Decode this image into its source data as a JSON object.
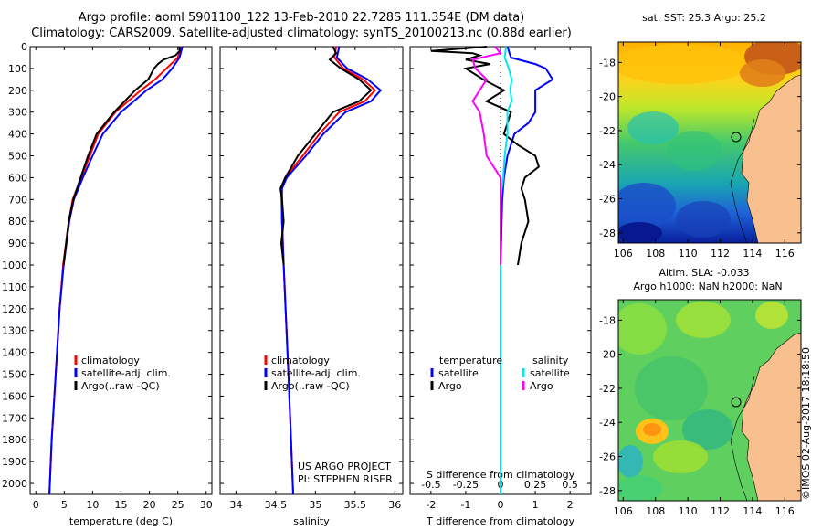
{
  "titles": {
    "line1": "Argo profile: aoml 5901100_122 13-Feb-2010 22.728S 111.354E (DM data)",
    "line2": "Climatology: CARS2009. Satellite-adjusted climatology: synTS_20100213.nc (0.88d earlier)"
  },
  "colors": {
    "climatology": "#ff0000",
    "satellite": "#0000ff",
    "argo": "#000000",
    "sat_salinity": "#00e5ee",
    "argo_salinity": "#ff00ff",
    "land": "#f7c08e"
  },
  "chart_data": [
    {
      "type": "line",
      "panel": "temperature",
      "xlabel": "temperature (deg C)",
      "xlim": [
        -1,
        31
      ],
      "xticks": [
        0,
        5,
        10,
        15,
        20,
        25,
        30
      ],
      "ylim": [
        0,
        2050
      ],
      "yticks": [
        0,
        100,
        200,
        300,
        400,
        500,
        600,
        700,
        800,
        900,
        1000,
        1100,
        1200,
        1300,
        1400,
        1500,
        1600,
        1700,
        1800,
        1900,
        2000
      ],
      "legend": [
        "climatology",
        "satellite-adj. clim.",
        "Argo(..raw -QC)"
      ],
      "series": [
        {
          "name": "climatology",
          "color": "red",
          "depth": [
            0,
            50,
            100,
            150,
            200,
            300,
            400,
            500,
            600,
            700,
            800,
            1000,
            1200,
            1500,
            1800,
            2050
          ],
          "values": [
            25.6,
            25.0,
            23.0,
            21.0,
            18.5,
            14.0,
            11.0,
            9.5,
            8.0,
            6.5,
            5.8,
            4.8,
            4.2,
            3.5,
            2.8,
            2.4
          ]
        },
        {
          "name": "satellite-adj. clim.",
          "color": "blue",
          "depth": [
            0,
            50,
            100,
            150,
            200,
            300,
            400,
            500,
            600,
            700,
            800,
            1000,
            1200,
            1500,
            1800,
            2050
          ],
          "values": [
            25.8,
            25.3,
            24.0,
            22.3,
            19.5,
            15.0,
            11.8,
            10.0,
            8.3,
            6.7,
            5.9,
            4.9,
            4.2,
            3.5,
            2.8,
            2.4
          ]
        },
        {
          "name": "Argo(..raw -QC)",
          "color": "black",
          "depth": [
            0,
            20,
            40,
            60,
            80,
            100,
            150,
            200,
            300,
            400,
            500,
            600,
            700,
            800,
            1000
          ],
          "values": [
            25.3,
            25.3,
            24.6,
            22.5,
            21.5,
            20.8,
            19.8,
            17.5,
            13.8,
            10.7,
            9.2,
            7.9,
            6.6,
            5.8,
            4.9
          ]
        }
      ],
      "annotations": []
    },
    {
      "type": "line",
      "panel": "salinity",
      "xlabel": "salinity",
      "xlim": [
        33.8,
        36.1
      ],
      "xticks": [
        34,
        34.5,
        35,
        35.5,
        36
      ],
      "xticklabels": [
        "34",
        "34.5",
        "35",
        "35.5",
        "36"
      ],
      "ylim": [
        0,
        2050
      ],
      "legend": [
        "climatology",
        "satellite-adj. clim.",
        "Argo(..raw -QC)"
      ],
      "series": [
        {
          "name": "climatology",
          "color": "red",
          "depth": [
            0,
            50,
            100,
            150,
            200,
            250,
            300,
            400,
            500,
            600,
            650,
            800,
            1000,
            1500,
            2050
          ],
          "values": [
            35.26,
            35.24,
            35.35,
            35.6,
            35.75,
            35.62,
            35.3,
            35.05,
            34.84,
            34.62,
            34.57,
            34.58,
            34.6,
            34.66,
            34.72
          ]
        },
        {
          "name": "satellite-adj. clim.",
          "color": "blue",
          "depth": [
            0,
            50,
            100,
            150,
            200,
            250,
            300,
            400,
            500,
            600,
            650,
            800,
            1000,
            1500,
            2050
          ],
          "values": [
            35.3,
            35.27,
            35.4,
            35.66,
            35.82,
            35.7,
            35.38,
            35.1,
            34.88,
            34.64,
            34.58,
            34.58,
            34.6,
            34.66,
            34.72
          ]
        },
        {
          "name": "Argo(..raw -QC)",
          "color": "black",
          "depth": [
            0,
            30,
            60,
            100,
            150,
            200,
            250,
            300,
            400,
            500,
            600,
            650,
            700,
            800,
            900,
            1000
          ],
          "values": [
            35.22,
            35.26,
            35.18,
            35.32,
            35.55,
            35.7,
            35.55,
            35.22,
            35.0,
            34.78,
            34.62,
            34.56,
            34.58,
            34.6,
            34.57,
            34.6
          ]
        }
      ],
      "annotations": [
        "US ARGO PROJECT",
        "PI: STEPHEN RISER"
      ]
    },
    {
      "type": "line",
      "panel": "differences",
      "xlabel": "T difference from climatology",
      "xlabel2": "S difference from climatology",
      "xlim": [
        -2.6,
        2.6
      ],
      "xticks": [
        -2,
        -1,
        0,
        1,
        2
      ],
      "xticks2": [
        -0.5,
        -0.25,
        0,
        0.25,
        0.5
      ],
      "xticklabels2": [
        "-0.5",
        "-0.25",
        "0",
        "0.25",
        "0.5"
      ],
      "ylim": [
        0,
        2050
      ],
      "legend_headers": [
        "temperature",
        "salinity"
      ],
      "legend": [
        "satellite",
        "Argo",
        "satellite",
        "Argo"
      ],
      "series": [
        {
          "name": "satellite",
          "quantity": "temperature",
          "color": "blue",
          "depth": [
            0,
            50,
            80,
            100,
            150,
            200,
            250,
            300,
            350,
            400,
            500,
            600,
            700,
            1000,
            1500,
            2050
          ],
          "values": [
            0.2,
            0.3,
            1.0,
            1.3,
            1.5,
            1.0,
            1.0,
            1.0,
            0.8,
            0.4,
            0.2,
            0.1,
            0.05,
            0.0,
            0.0,
            0.0
          ]
        },
        {
          "name": "Argo",
          "quantity": "temperature",
          "color": "black",
          "depth": [
            0,
            20,
            30,
            40,
            60,
            80,
            100,
            150,
            200,
            250,
            300,
            400,
            450,
            500,
            550,
            600,
            650,
            700,
            800,
            900,
            1000
          ],
          "values": [
            -0.4,
            -2.0,
            -0.8,
            -0.6,
            -1.0,
            -0.3,
            -1.0,
            -0.5,
            0.1,
            -0.4,
            0.3,
            0.1,
            0.5,
            1.0,
            1.1,
            0.7,
            0.6,
            0.7,
            0.8,
            0.6,
            0.5
          ]
        },
        {
          "name": "satellite",
          "quantity": "salinity",
          "color": "cyan",
          "depth": [
            0,
            50,
            100,
            150,
            200,
            250,
            300,
            400,
            500,
            600,
            700,
            1000,
            2050
          ],
          "values": [
            0.04,
            0.03,
            0.06,
            0.08,
            0.07,
            0.08,
            0.05,
            0.05,
            0.03,
            0.02,
            0.0,
            0.0,
            0.0
          ]
        },
        {
          "name": "Argo",
          "quantity": "salinity",
          "color": "magenta",
          "depth": [
            0,
            30,
            60,
            100,
            150,
            200,
            250,
            300,
            400,
            500,
            600,
            700,
            800,
            1000
          ],
          "values": [
            -0.04,
            0.0,
            -0.2,
            -0.18,
            -0.1,
            -0.15,
            -0.2,
            -0.15,
            -0.12,
            -0.1,
            0.0,
            0.0,
            0.0,
            0.0
          ]
        }
      ],
      "annotations": []
    }
  ],
  "maps": {
    "sst": {
      "title": "sat. SST: 25.3 Argo: 25.2",
      "xlim": [
        105.7,
        117
      ],
      "ylim": [
        -28.6,
        -16.8
      ],
      "xticks": [
        106,
        108,
        110,
        112,
        114,
        116
      ],
      "yticks": [
        -18,
        -20,
        -22,
        -24,
        -26,
        -28
      ],
      "float_lon": 111.354,
      "float_lat": -22.728
    },
    "sla": {
      "title_line1": "Altim. SLA: -0.033",
      "title_line2": "Argo h1000: NaN h2000: NaN",
      "xlim": [
        105.7,
        117
      ],
      "ylim": [
        -28.6,
        -16.8
      ],
      "xticks": [
        106,
        108,
        110,
        112,
        114,
        116
      ],
      "yticks": [
        -18,
        -20,
        -22,
        -24,
        -26,
        -28
      ],
      "float_lon": 111.354,
      "float_lat": -22.728
    }
  },
  "stamp": "©IMOS 02-Aug-2017 18:18:50"
}
